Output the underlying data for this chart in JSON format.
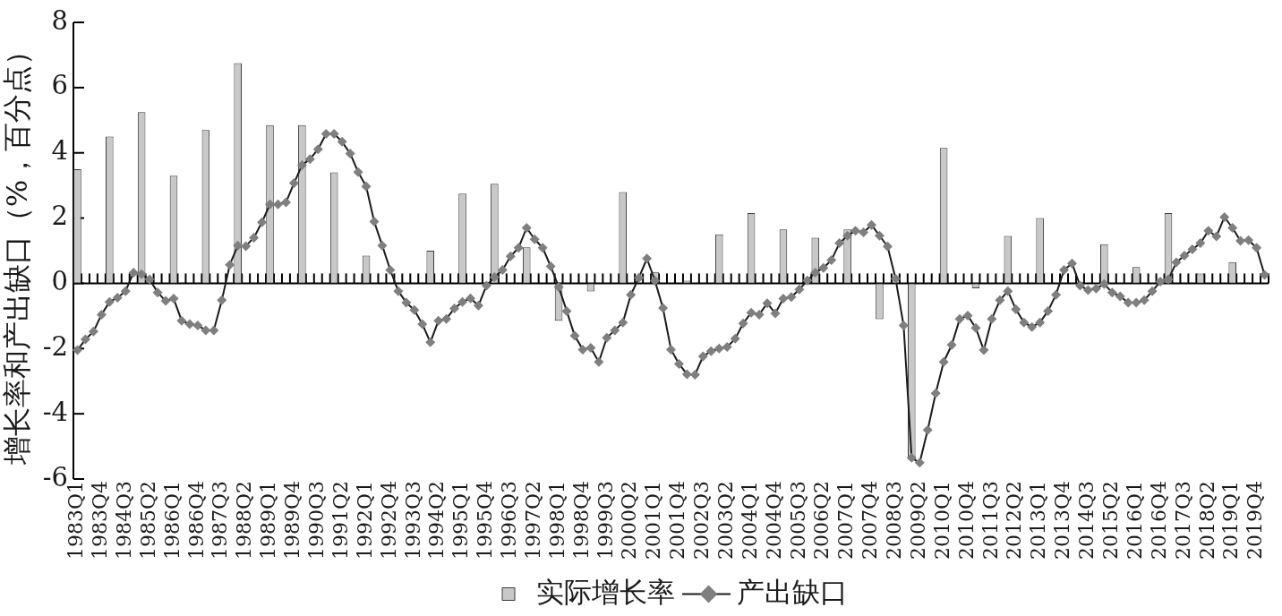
{
  "chart_data": {
    "type": "bar",
    "ylabel": "增长率和产出缺口（%，百分点）",
    "categories": [
      "1983Q1",
      null,
      null,
      "1983Q4",
      null,
      null,
      "1984Q3",
      null,
      null,
      "1985Q2",
      null,
      null,
      "1986Q1",
      null,
      null,
      "1986Q4",
      null,
      null,
      "1987Q3",
      null,
      null,
      "1988Q2",
      null,
      null,
      "1989Q1",
      null,
      null,
      "1989Q4",
      null,
      null,
      "1990Q3",
      null,
      null,
      "1991Q2",
      null,
      null,
      "1992Q1",
      null,
      null,
      "1992Q4",
      null,
      null,
      "1993Q3",
      null,
      null,
      "1994Q2",
      null,
      null,
      "1995Q1",
      null,
      null,
      "1995Q4",
      null,
      null,
      "1996Q3",
      null,
      null,
      "1997Q2",
      null,
      null,
      "1998Q1",
      null,
      null,
      "1998Q4",
      null,
      null,
      "1999Q3",
      null,
      null,
      "2000Q2",
      null,
      null,
      "2001Q1",
      null,
      null,
      "2001Q4",
      null,
      null,
      "2002Q3",
      null,
      null,
      "2003Q2",
      null,
      null,
      "2004Q1",
      null,
      null,
      "2004Q4",
      null,
      null,
      "2005Q3",
      null,
      null,
      "2006Q2",
      null,
      null,
      "2007Q1",
      null,
      null,
      "2007Q4",
      null,
      null,
      "2008Q3",
      null,
      null,
      "2009Q2",
      null,
      null,
      "2010Q1",
      null,
      null,
      "2010Q4",
      null,
      null,
      "2011Q3",
      null,
      null,
      "2012Q2",
      null,
      null,
      "2013Q1",
      null,
      null,
      "2013Q4",
      null,
      null,
      "2014Q3",
      null,
      null,
      "2015Q2",
      null,
      null,
      "2016Q1",
      null,
      null,
      "2016Q4",
      null,
      null,
      "2017Q3",
      null,
      null,
      "2018Q2",
      null,
      null,
      "2019Q1",
      null,
      null,
      "2019Q4",
      null
    ],
    "series": [
      {
        "name": "实际增长率",
        "color": "#c8c8c8",
        "values": [
          3.5,
          null,
          null,
          null,
          4.5,
          null,
          null,
          null,
          5.25,
          null,
          null,
          null,
          3.3,
          null,
          null,
          null,
          4.7,
          null,
          null,
          null,
          6.75,
          null,
          null,
          null,
          4.85,
          null,
          null,
          null,
          4.85,
          null,
          null,
          null,
          3.4,
          null,
          null,
          null,
          0.85,
          null,
          null,
          null,
          null,
          null,
          null,
          null,
          1.0,
          null,
          null,
          null,
          2.75,
          null,
          null,
          null,
          3.05,
          null,
          null,
          null,
          1.1,
          null,
          null,
          null,
          -1.15,
          null,
          null,
          null,
          -0.25,
          null,
          null,
          null,
          2.8,
          null,
          null,
          null,
          0.35,
          null,
          null,
          null,
          0.08,
          null,
          null,
          null,
          1.5,
          null,
          null,
          null,
          2.15,
          null,
          null,
          null,
          1.65,
          null,
          null,
          null,
          1.4,
          null,
          null,
          null,
          1.65,
          null,
          null,
          null,
          -1.1,
          null,
          null,
          null,
          -5.4,
          null,
          null,
          null,
          4.15,
          null,
          null,
          null,
          -0.15,
          null,
          null,
          null,
          1.45,
          null,
          null,
          null,
          2.0,
          null,
          null,
          null,
          null,
          null,
          null,
          null,
          1.2,
          null,
          null,
          null,
          0.5,
          null,
          null,
          null,
          2.15,
          null,
          null,
          null,
          0.3,
          null,
          null,
          null,
          0.65,
          null,
          null,
          null,
          null
        ]
      },
      {
        "name": "产出缺口",
        "type": "line",
        "color": "#1a1a1a",
        "values": [
          -2.05,
          -1.72,
          -1.48,
          -0.96,
          -0.57,
          -0.44,
          -0.24,
          0.33,
          0.28,
          0.12,
          -0.28,
          -0.54,
          -0.47,
          -1.15,
          -1.25,
          -1.29,
          -1.44,
          -1.44,
          -0.52,
          0.57,
          1.16,
          1.14,
          1.4,
          1.87,
          2.42,
          2.42,
          2.48,
          3.07,
          3.62,
          3.81,
          4.11,
          4.58,
          4.58,
          4.34,
          3.98,
          3.41,
          2.97,
          1.89,
          1.16,
          0.41,
          -0.24,
          -0.59,
          -0.82,
          -1.25,
          -1.81,
          -1.15,
          -1.09,
          -0.77,
          -0.57,
          -0.46,
          -0.68,
          -0.07,
          0.19,
          0.41,
          0.83,
          1.09,
          1.7,
          1.35,
          1.09,
          0.52,
          -0.11,
          -0.85,
          -1.61,
          -2.03,
          -1.98,
          -2.41,
          -1.67,
          -1.44,
          -1.2,
          -0.35,
          0.17,
          0.76,
          0.08,
          -0.76,
          -2.03,
          -2.47,
          -2.79,
          -2.8,
          -2.24,
          -2.08,
          -2.0,
          -1.95,
          -1.7,
          -1.23,
          -0.9,
          -0.96,
          -0.61,
          -0.92,
          -0.47,
          -0.42,
          -0.19,
          0.09,
          0.33,
          0.47,
          0.71,
          1.23,
          1.46,
          1.61,
          1.56,
          1.79,
          1.46,
          1.13,
          0.14,
          -1.29,
          -5.35,
          -5.5,
          -4.5,
          -3.37,
          -2.41,
          -1.89,
          -1.09,
          -0.99,
          -1.37,
          -2.05,
          -1.09,
          -0.52,
          -0.24,
          -0.8,
          -1.2,
          -1.34,
          -1.2,
          -0.85,
          -0.35,
          0.41,
          0.61,
          -0.07,
          -0.21,
          -0.16,
          -0.02,
          -0.28,
          -0.4,
          -0.59,
          -0.59,
          -0.52,
          -0.24,
          0.05,
          0.12,
          0.64,
          0.85,
          1.04,
          1.23,
          1.61,
          1.44,
          2.03,
          1.7,
          1.3,
          1.32,
          1.09,
          0.26
        ]
      }
    ],
    "ylim": [
      -6,
      8
    ],
    "yticks": [
      -6,
      -4,
      -2,
      0,
      2,
      4,
      6,
      8
    ],
    "legend": "bottom",
    "marker": "diamond",
    "line_style": "solid"
  }
}
